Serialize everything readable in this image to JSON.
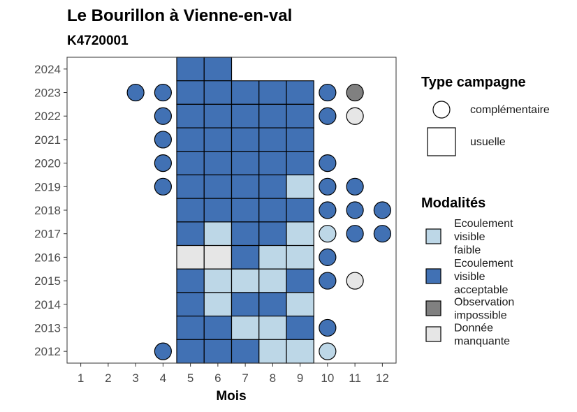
{
  "chart_data": {
    "type": "heatmap",
    "title": "Le Bourillon à Vienne-en-val",
    "subtitle": "K4720001",
    "xlabel": "Mois",
    "ylabel": "",
    "x_ticks": [
      "1",
      "2",
      "3",
      "4",
      "5",
      "6",
      "7",
      "8",
      "9",
      "10",
      "11",
      "12"
    ],
    "y_ticks": [
      "2012",
      "2013",
      "2014",
      "2015",
      "2016",
      "2017",
      "2018",
      "2019",
      "2020",
      "2021",
      "2022",
      "2023",
      "2024"
    ],
    "xlim": [
      0.5,
      12.5
    ],
    "ylim": [
      2011.5,
      2024.5
    ],
    "grid": false,
    "legend_position": "right",
    "legend_shape": {
      "title": "Type campagne",
      "items": [
        {
          "key": "complementaire",
          "label": "complémentaire",
          "shape": "circle"
        },
        {
          "key": "usuelle",
          "label": "usuelle",
          "shape": "square"
        }
      ]
    },
    "legend_fill": {
      "title": "Modalités",
      "items": [
        {
          "key": "faible",
          "label": [
            "Ecoulement",
            "visible",
            "faible"
          ],
          "color": "#bdd7e7"
        },
        {
          "key": "acceptable",
          "label": [
            "Ecoulement",
            "visible",
            "acceptable"
          ],
          "color": "#4171b4"
        },
        {
          "key": "impossible",
          "label": [
            "Observation",
            "impossible"
          ],
          "color": "#808080"
        },
        {
          "key": "manquante",
          "label": [
            "Donnée",
            "manquante"
          ],
          "color": "#e6e6e6"
        }
      ]
    },
    "points": [
      {
        "month": 5,
        "year": 2024,
        "type": "usuelle",
        "modalite": "acceptable"
      },
      {
        "month": 6,
        "year": 2024,
        "type": "usuelle",
        "modalite": "acceptable"
      },
      {
        "month": 3,
        "year": 2023,
        "type": "complementaire",
        "modalite": "acceptable"
      },
      {
        "month": 4,
        "year": 2023,
        "type": "complementaire",
        "modalite": "acceptable"
      },
      {
        "month": 5,
        "year": 2023,
        "type": "usuelle",
        "modalite": "acceptable"
      },
      {
        "month": 6,
        "year": 2023,
        "type": "usuelle",
        "modalite": "acceptable"
      },
      {
        "month": 7,
        "year": 2023,
        "type": "usuelle",
        "modalite": "acceptable"
      },
      {
        "month": 8,
        "year": 2023,
        "type": "usuelle",
        "modalite": "acceptable"
      },
      {
        "month": 9,
        "year": 2023,
        "type": "usuelle",
        "modalite": "acceptable"
      },
      {
        "month": 10,
        "year": 2023,
        "type": "complementaire",
        "modalite": "acceptable"
      },
      {
        "month": 11,
        "year": 2023,
        "type": "complementaire",
        "modalite": "impossible"
      },
      {
        "month": 4,
        "year": 2022,
        "type": "complementaire",
        "modalite": "acceptable"
      },
      {
        "month": 5,
        "year": 2022,
        "type": "usuelle",
        "modalite": "acceptable"
      },
      {
        "month": 6,
        "year": 2022,
        "type": "usuelle",
        "modalite": "acceptable"
      },
      {
        "month": 7,
        "year": 2022,
        "type": "usuelle",
        "modalite": "acceptable"
      },
      {
        "month": 8,
        "year": 2022,
        "type": "usuelle",
        "modalite": "acceptable"
      },
      {
        "month": 9,
        "year": 2022,
        "type": "usuelle",
        "modalite": "acceptable"
      },
      {
        "month": 10,
        "year": 2022,
        "type": "complementaire",
        "modalite": "acceptable"
      },
      {
        "month": 11,
        "year": 2022,
        "type": "complementaire",
        "modalite": "manquante"
      },
      {
        "month": 4,
        "year": 2021,
        "type": "complementaire",
        "modalite": "acceptable"
      },
      {
        "month": 5,
        "year": 2021,
        "type": "usuelle",
        "modalite": "acceptable"
      },
      {
        "month": 6,
        "year": 2021,
        "type": "usuelle",
        "modalite": "acceptable"
      },
      {
        "month": 7,
        "year": 2021,
        "type": "usuelle",
        "modalite": "acceptable"
      },
      {
        "month": 8,
        "year": 2021,
        "type": "usuelle",
        "modalite": "acceptable"
      },
      {
        "month": 9,
        "year": 2021,
        "type": "usuelle",
        "modalite": "acceptable"
      },
      {
        "month": 4,
        "year": 2020,
        "type": "complementaire",
        "modalite": "acceptable"
      },
      {
        "month": 5,
        "year": 2020,
        "type": "usuelle",
        "modalite": "acceptable"
      },
      {
        "month": 6,
        "year": 2020,
        "type": "usuelle",
        "modalite": "acceptable"
      },
      {
        "month": 7,
        "year": 2020,
        "type": "usuelle",
        "modalite": "acceptable"
      },
      {
        "month": 8,
        "year": 2020,
        "type": "usuelle",
        "modalite": "acceptable"
      },
      {
        "month": 9,
        "year": 2020,
        "type": "usuelle",
        "modalite": "acceptable"
      },
      {
        "month": 10,
        "year": 2020,
        "type": "complementaire",
        "modalite": "acceptable"
      },
      {
        "month": 4,
        "year": 2019,
        "type": "complementaire",
        "modalite": "acceptable"
      },
      {
        "month": 5,
        "year": 2019,
        "type": "usuelle",
        "modalite": "acceptable"
      },
      {
        "month": 6,
        "year": 2019,
        "type": "usuelle",
        "modalite": "acceptable"
      },
      {
        "month": 7,
        "year": 2019,
        "type": "usuelle",
        "modalite": "acceptable"
      },
      {
        "month": 8,
        "year": 2019,
        "type": "usuelle",
        "modalite": "acceptable"
      },
      {
        "month": 9,
        "year": 2019,
        "type": "usuelle",
        "modalite": "faible"
      },
      {
        "month": 10,
        "year": 2019,
        "type": "complementaire",
        "modalite": "acceptable"
      },
      {
        "month": 11,
        "year": 2019,
        "type": "complementaire",
        "modalite": "acceptable"
      },
      {
        "month": 5,
        "year": 2018,
        "type": "usuelle",
        "modalite": "acceptable"
      },
      {
        "month": 6,
        "year": 2018,
        "type": "usuelle",
        "modalite": "acceptable"
      },
      {
        "month": 7,
        "year": 2018,
        "type": "usuelle",
        "modalite": "acceptable"
      },
      {
        "month": 8,
        "year": 2018,
        "type": "usuelle",
        "modalite": "acceptable"
      },
      {
        "month": 9,
        "year": 2018,
        "type": "usuelle",
        "modalite": "acceptable"
      },
      {
        "month": 10,
        "year": 2018,
        "type": "complementaire",
        "modalite": "acceptable"
      },
      {
        "month": 11,
        "year": 2018,
        "type": "complementaire",
        "modalite": "acceptable"
      },
      {
        "month": 12,
        "year": 2018,
        "type": "complementaire",
        "modalite": "acceptable"
      },
      {
        "month": 5,
        "year": 2017,
        "type": "usuelle",
        "modalite": "acceptable"
      },
      {
        "month": 6,
        "year": 2017,
        "type": "usuelle",
        "modalite": "faible"
      },
      {
        "month": 7,
        "year": 2017,
        "type": "usuelle",
        "modalite": "acceptable"
      },
      {
        "month": 8,
        "year": 2017,
        "type": "usuelle",
        "modalite": "acceptable"
      },
      {
        "month": 9,
        "year": 2017,
        "type": "usuelle",
        "modalite": "faible"
      },
      {
        "month": 10,
        "year": 2017,
        "type": "complementaire",
        "modalite": "faible"
      },
      {
        "month": 11,
        "year": 2017,
        "type": "complementaire",
        "modalite": "acceptable"
      },
      {
        "month": 12,
        "year": 2017,
        "type": "complementaire",
        "modalite": "acceptable"
      },
      {
        "month": 5,
        "year": 2016,
        "type": "usuelle",
        "modalite": "manquante"
      },
      {
        "month": 6,
        "year": 2016,
        "type": "usuelle",
        "modalite": "manquante"
      },
      {
        "month": 7,
        "year": 2016,
        "type": "usuelle",
        "modalite": "acceptable"
      },
      {
        "month": 8,
        "year": 2016,
        "type": "usuelle",
        "modalite": "faible"
      },
      {
        "month": 9,
        "year": 2016,
        "type": "usuelle",
        "modalite": "faible"
      },
      {
        "month": 10,
        "year": 2016,
        "type": "complementaire",
        "modalite": "acceptable"
      },
      {
        "month": 5,
        "year": 2015,
        "type": "usuelle",
        "modalite": "acceptable"
      },
      {
        "month": 6,
        "year": 2015,
        "type": "usuelle",
        "modalite": "faible"
      },
      {
        "month": 7,
        "year": 2015,
        "type": "usuelle",
        "modalite": "faible"
      },
      {
        "month": 8,
        "year": 2015,
        "type": "usuelle",
        "modalite": "faible"
      },
      {
        "month": 9,
        "year": 2015,
        "type": "usuelle",
        "modalite": "acceptable"
      },
      {
        "month": 10,
        "year": 2015,
        "type": "complementaire",
        "modalite": "acceptable"
      },
      {
        "month": 11,
        "year": 2015,
        "type": "complementaire",
        "modalite": "manquante"
      },
      {
        "month": 5,
        "year": 2014,
        "type": "usuelle",
        "modalite": "acceptable"
      },
      {
        "month": 6,
        "year": 2014,
        "type": "usuelle",
        "modalite": "faible"
      },
      {
        "month": 7,
        "year": 2014,
        "type": "usuelle",
        "modalite": "acceptable"
      },
      {
        "month": 8,
        "year": 2014,
        "type": "usuelle",
        "modalite": "acceptable"
      },
      {
        "month": 9,
        "year": 2014,
        "type": "usuelle",
        "modalite": "faible"
      },
      {
        "month": 5,
        "year": 2013,
        "type": "usuelle",
        "modalite": "acceptable"
      },
      {
        "month": 6,
        "year": 2013,
        "type": "usuelle",
        "modalite": "acceptable"
      },
      {
        "month": 7,
        "year": 2013,
        "type": "usuelle",
        "modalite": "faible"
      },
      {
        "month": 8,
        "year": 2013,
        "type": "usuelle",
        "modalite": "faible"
      },
      {
        "month": 9,
        "year": 2013,
        "type": "usuelle",
        "modalite": "acceptable"
      },
      {
        "month": 10,
        "year": 2013,
        "type": "complementaire",
        "modalite": "acceptable"
      },
      {
        "month": 4,
        "year": 2012,
        "type": "complementaire",
        "modalite": "acceptable"
      },
      {
        "month": 5,
        "year": 2012,
        "type": "usuelle",
        "modalite": "acceptable"
      },
      {
        "month": 6,
        "year": 2012,
        "type": "usuelle",
        "modalite": "acceptable"
      },
      {
        "month": 7,
        "year": 2012,
        "type": "usuelle",
        "modalite": "acceptable"
      },
      {
        "month": 8,
        "year": 2012,
        "type": "usuelle",
        "modalite": "faible"
      },
      {
        "month": 9,
        "year": 2012,
        "type": "usuelle",
        "modalite": "faible"
      },
      {
        "month": 10,
        "year": 2012,
        "type": "complementaire",
        "modalite": "faible"
      }
    ]
  }
}
